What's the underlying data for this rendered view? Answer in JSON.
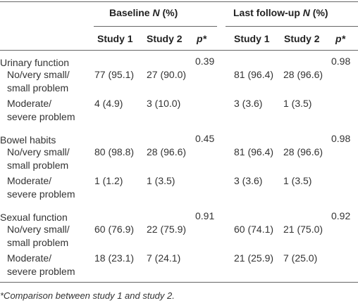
{
  "header": {
    "groups": [
      {
        "parts": [
          "Baseline ",
          "N",
          " (%)"
        ]
      },
      {
        "parts": [
          "Last follow-up ",
          "N",
          " (%)"
        ]
      }
    ],
    "columns": [
      "Study 1",
      "Study 2",
      "p*",
      "Study 1",
      "Study 2",
      "p*"
    ]
  },
  "sections": [
    {
      "label": "Urinary function",
      "p": [
        "0.39",
        "0.98"
      ],
      "rows": [
        {
          "lines": [
            "No/very small/",
            "small problem"
          ],
          "values": [
            "77 (95.1)",
            "27 (90.0)",
            "81 (96.4)",
            "28 (96.6)"
          ]
        },
        {
          "lines": [
            "Moderate/",
            "severe problem"
          ],
          "values": [
            "4 (4.9)",
            "3 (10.0)",
            "3 (3.6)",
            "1 (3.5)"
          ]
        }
      ]
    },
    {
      "label": "Bowel habits",
      "p": [
        "0.45",
        "0.98"
      ],
      "rows": [
        {
          "lines": [
            "No/very small/",
            "small problem"
          ],
          "values": [
            "80 (98.8)",
            "28 (96.6)",
            "81 (96.4)",
            "28 (96.6)"
          ]
        },
        {
          "lines": [
            "Moderate/",
            "severe problem"
          ],
          "values": [
            "1 (1.2)",
            "1 (3.5)",
            "3 (3.6)",
            "1 (3.5)"
          ]
        }
      ]
    },
    {
      "label": "Sexual function",
      "p": [
        "0.91",
        "0.92"
      ],
      "rows": [
        {
          "lines": [
            "No/very small/",
            "small problem"
          ],
          "values": [
            "60 (76.9)",
            "22 (75.9)",
            "60 (74.1)",
            "21 (75.0)"
          ]
        },
        {
          "lines": [
            "Moderate/",
            "severe problem"
          ],
          "values": [
            "18 (23.1)",
            "7 (24.1)",
            "21 (25.9)",
            "7 (25.0)"
          ]
        }
      ]
    }
  ],
  "footnote": "*Comparison between study 1 and study 2."
}
